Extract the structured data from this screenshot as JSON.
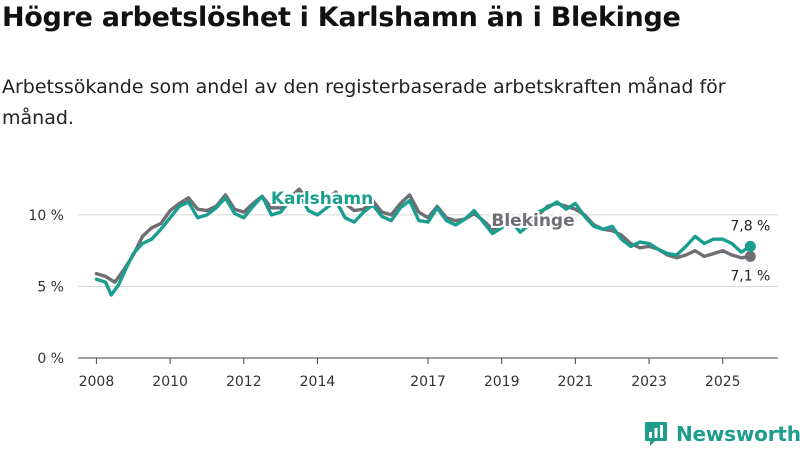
{
  "header": {
    "title": "Högre arbetslöshet i Karlshamn än i Blekinge",
    "subtitle": "Arbetssökande som andel av den registerbaserade arbetskraften månad för månad."
  },
  "brand": {
    "name": "Newsworthy",
    "icon": "bar-chart-logo-icon"
  },
  "chart_data": {
    "type": "line",
    "title": "Högre arbetslöshet i Karlshamn än i Blekinge",
    "subtitle": "Arbetssökande som andel av den registerbaserade arbetskraften månad för månad.",
    "xlabel": "",
    "ylabel": "",
    "ylim": [
      0,
      13
    ],
    "xlim": [
      2007.5,
      2026.5
    ],
    "yticks": [
      {
        "value": 0,
        "label": "0 %"
      },
      {
        "value": 5,
        "label": "5 %"
      },
      {
        "value": 10,
        "label": "10 %"
      }
    ],
    "xticks": [
      {
        "value": 2008,
        "label": "2008"
      },
      {
        "value": 2010,
        "label": "2010"
      },
      {
        "value": 2012,
        "label": "2012"
      },
      {
        "value": 2014,
        "label": "2014"
      },
      {
        "value": 2017,
        "label": "2017"
      },
      {
        "value": 2019,
        "label": "2019"
      },
      {
        "value": 2021,
        "label": "2021"
      },
      {
        "value": 2023,
        "label": "2023"
      },
      {
        "value": 2025,
        "label": "2025"
      }
    ],
    "grid": true,
    "series": [
      {
        "name": "Blekinge",
        "color": "#6e6e73",
        "end_label": "7,1 %",
        "points": [
          [
            2008.0,
            5.9
          ],
          [
            2008.25,
            5.7
          ],
          [
            2008.5,
            5.3
          ],
          [
            2008.75,
            6.2
          ],
          [
            2009.0,
            7.2
          ],
          [
            2009.25,
            8.5
          ],
          [
            2009.5,
            9.1
          ],
          [
            2009.75,
            9.4
          ],
          [
            2010.0,
            10.3
          ],
          [
            2010.25,
            10.8
          ],
          [
            2010.5,
            11.2
          ],
          [
            2010.75,
            10.4
          ],
          [
            2011.0,
            10.3
          ],
          [
            2011.25,
            10.6
          ],
          [
            2011.5,
            11.4
          ],
          [
            2011.75,
            10.4
          ],
          [
            2012.0,
            10.2
          ],
          [
            2012.25,
            10.8
          ],
          [
            2012.5,
            11.3
          ],
          [
            2012.75,
            10.5
          ],
          [
            2013.0,
            10.5
          ],
          [
            2013.25,
            11.2
          ],
          [
            2013.5,
            11.8
          ],
          [
            2013.75,
            11.0
          ],
          [
            2014.0,
            10.8
          ],
          [
            2014.25,
            11.1
          ],
          [
            2014.5,
            11.6
          ],
          [
            2014.75,
            10.8
          ],
          [
            2015.0,
            10.3
          ],
          [
            2015.25,
            10.4
          ],
          [
            2015.5,
            11.0
          ],
          [
            2015.75,
            10.2
          ],
          [
            2016.0,
            10.0
          ],
          [
            2016.25,
            10.8
          ],
          [
            2016.5,
            11.4
          ],
          [
            2016.75,
            10.2
          ],
          [
            2017.0,
            9.8
          ],
          [
            2017.25,
            10.6
          ],
          [
            2017.5,
            9.8
          ],
          [
            2017.75,
            9.6
          ],
          [
            2018.0,
            9.7
          ],
          [
            2018.25,
            10.1
          ],
          [
            2018.5,
            9.6
          ],
          [
            2018.75,
            9.0
          ],
          [
            2019.0,
            9.2
          ],
          [
            2019.25,
            9.7
          ],
          [
            2019.5,
            9.8
          ],
          [
            2019.75,
            9.5
          ],
          [
            2020.0,
            10.0
          ],
          [
            2020.25,
            10.6
          ],
          [
            2020.5,
            10.8
          ],
          [
            2020.75,
            10.6
          ],
          [
            2021.0,
            10.4
          ],
          [
            2021.25,
            10.0
          ],
          [
            2021.5,
            9.3
          ],
          [
            2021.75,
            9.0
          ],
          [
            2022.0,
            8.9
          ],
          [
            2022.25,
            8.6
          ],
          [
            2022.5,
            8.0
          ],
          [
            2022.75,
            7.7
          ],
          [
            2023.0,
            7.8
          ],
          [
            2023.25,
            7.6
          ],
          [
            2023.5,
            7.2
          ],
          [
            2023.75,
            7.0
          ],
          [
            2024.0,
            7.2
          ],
          [
            2024.25,
            7.5
          ],
          [
            2024.5,
            7.1
          ],
          [
            2024.75,
            7.3
          ],
          [
            2025.0,
            7.5
          ],
          [
            2025.25,
            7.2
          ],
          [
            2025.5,
            7.0
          ],
          [
            2025.75,
            7.1
          ]
        ]
      },
      {
        "name": "Karlshamn",
        "color": "#1a9e8f",
        "end_label": "7,8 %",
        "points": [
          [
            2008.0,
            5.5
          ],
          [
            2008.25,
            5.3
          ],
          [
            2008.4,
            4.4
          ],
          [
            2008.6,
            5.1
          ],
          [
            2008.85,
            6.5
          ],
          [
            2009.0,
            7.3
          ],
          [
            2009.25,
            8.0
          ],
          [
            2009.5,
            8.3
          ],
          [
            2009.75,
            9.0
          ],
          [
            2010.0,
            9.8
          ],
          [
            2010.25,
            10.6
          ],
          [
            2010.5,
            10.9
          ],
          [
            2010.75,
            9.8
          ],
          [
            2011.0,
            10.0
          ],
          [
            2011.25,
            10.5
          ],
          [
            2011.5,
            11.2
          ],
          [
            2011.75,
            10.1
          ],
          [
            2012.0,
            9.8
          ],
          [
            2012.25,
            10.6
          ],
          [
            2012.5,
            11.3
          ],
          [
            2012.75,
            10.0
          ],
          [
            2013.0,
            10.2
          ],
          [
            2013.25,
            11.0
          ],
          [
            2013.5,
            11.5
          ],
          [
            2013.75,
            10.3
          ],
          [
            2014.0,
            10.0
          ],
          [
            2014.25,
            10.5
          ],
          [
            2014.5,
            11.0
          ],
          [
            2014.75,
            9.8
          ],
          [
            2015.0,
            9.5
          ],
          [
            2015.25,
            10.2
          ],
          [
            2015.5,
            10.7
          ],
          [
            2015.75,
            9.9
          ],
          [
            2016.0,
            9.6
          ],
          [
            2016.25,
            10.5
          ],
          [
            2016.5,
            11.0
          ],
          [
            2016.75,
            9.6
          ],
          [
            2017.0,
            9.5
          ],
          [
            2017.25,
            10.5
          ],
          [
            2017.5,
            9.6
          ],
          [
            2017.75,
            9.3
          ],
          [
            2018.0,
            9.7
          ],
          [
            2018.25,
            10.3
          ],
          [
            2018.5,
            9.5
          ],
          [
            2018.75,
            8.7
          ],
          [
            2019.0,
            9.1
          ],
          [
            2019.25,
            9.6
          ],
          [
            2019.5,
            8.8
          ],
          [
            2019.75,
            9.3
          ],
          [
            2020.0,
            10.2
          ],
          [
            2020.25,
            10.5
          ],
          [
            2020.5,
            10.9
          ],
          [
            2020.75,
            10.4
          ],
          [
            2021.0,
            10.8
          ],
          [
            2021.25,
            9.9
          ],
          [
            2021.5,
            9.2
          ],
          [
            2021.75,
            9.0
          ],
          [
            2022.0,
            9.2
          ],
          [
            2022.25,
            8.3
          ],
          [
            2022.5,
            7.8
          ],
          [
            2022.75,
            8.1
          ],
          [
            2023.0,
            8.0
          ],
          [
            2023.25,
            7.6
          ],
          [
            2023.5,
            7.3
          ],
          [
            2023.75,
            7.2
          ],
          [
            2024.0,
            7.8
          ],
          [
            2024.25,
            8.5
          ],
          [
            2024.5,
            8.0
          ],
          [
            2024.75,
            8.3
          ],
          [
            2025.0,
            8.3
          ],
          [
            2025.25,
            8.0
          ],
          [
            2025.5,
            7.4
          ],
          [
            2025.75,
            7.8
          ]
        ]
      }
    ]
  }
}
